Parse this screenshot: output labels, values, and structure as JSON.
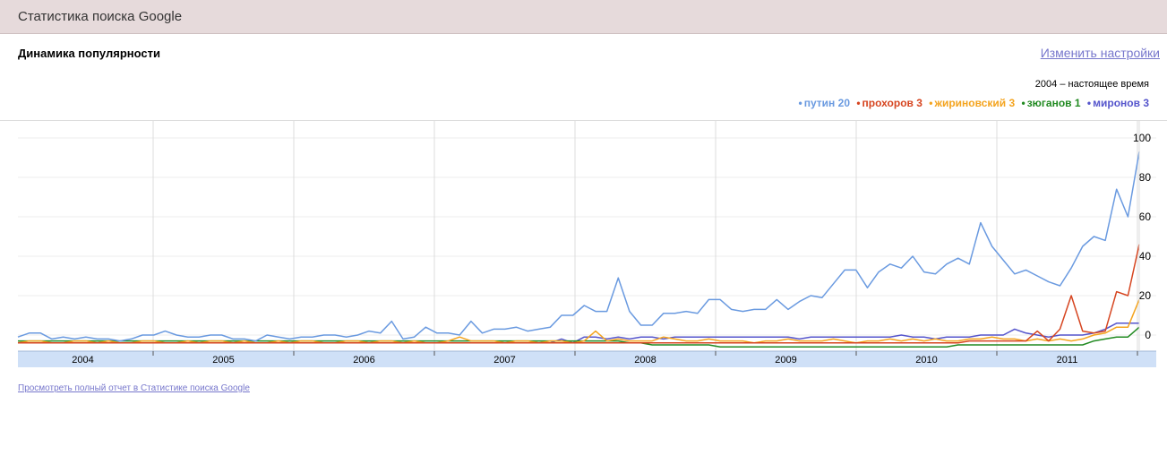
{
  "header": {
    "title": "Статистика поиска Google"
  },
  "section": {
    "title": "Динамика популярности"
  },
  "settings_link": "Изменить настройки",
  "period": "2004 – настоящее время",
  "report_link": "Просмотреть полный отчет в Статистике поиска Google",
  "legend": [
    {
      "label": "путин 20",
      "color": "#6a9ae0"
    },
    {
      "label": "прохоров 3",
      "color": "#d64520"
    },
    {
      "label": "жириновский 3",
      "color": "#f4a41f"
    },
    {
      "label": "зюганов 1",
      "color": "#218a21"
    },
    {
      "label": "миронов 3",
      "color": "#5555cc"
    }
  ],
  "chart_data": {
    "type": "line",
    "x_labels": [
      "2004",
      "2005",
      "2006",
      "2007",
      "2008",
      "2009",
      "2010",
      "2011"
    ],
    "y_ticks": [
      "100",
      "80",
      "60",
      "40",
      "20",
      "0"
    ],
    "ylim": [
      0,
      100
    ],
    "grid": true,
    "series": [
      {
        "name": "путин 20",
        "color": "#6a9ae0",
        "values": [
          -1,
          1,
          1,
          -2,
          -1,
          -2,
          -1,
          -2,
          -2,
          -3,
          -2,
          0,
          0,
          2,
          0,
          -1,
          -1,
          0,
          0,
          -2,
          -2,
          -3,
          0,
          -1,
          -2,
          -1,
          -1,
          0,
          0,
          -1,
          0,
          2,
          1,
          7,
          -2,
          -1,
          4,
          1,
          1,
          0,
          7,
          1,
          3,
          3,
          4,
          2,
          3,
          4,
          10,
          10,
          15,
          12,
          12,
          29,
          12,
          5,
          5,
          11,
          11,
          12,
          11,
          18,
          18,
          13,
          12,
          13,
          13,
          18,
          13,
          17,
          20,
          19,
          26,
          33,
          33,
          24,
          32,
          36,
          34,
          40,
          32,
          31,
          36,
          39,
          36,
          57,
          45,
          38,
          31,
          33,
          30,
          27,
          25,
          34,
          45,
          50,
          48,
          74,
          60,
          93
        ]
      },
      {
        "name": "прохоров 3",
        "color": "#d64520",
        "values": [
          -4,
          -4,
          -4,
          -4,
          -4,
          -4,
          -4,
          -4,
          -4,
          -4,
          -4,
          -4,
          -4,
          -4,
          -4,
          -4,
          -4,
          -4,
          -4,
          -4,
          -4,
          -4,
          -4,
          -4,
          -4,
          -4,
          -4,
          -4,
          -4,
          -4,
          -4,
          -4,
          -4,
          -4,
          -4,
          -4,
          -4,
          -4,
          -4,
          -4,
          -4,
          -4,
          -4,
          -4,
          -4,
          -4,
          -4,
          -4,
          -4,
          -4,
          -4,
          -4,
          -4,
          -4,
          -4,
          -4,
          -4,
          -4,
          -4,
          -4,
          -4,
          -4,
          -4,
          -4,
          -4,
          -4,
          -4,
          -4,
          -4,
          -4,
          -4,
          -4,
          -4,
          -4,
          -4,
          -4,
          -4,
          -4,
          -4,
          -4,
          -4,
          -4,
          -4,
          -4,
          -3,
          -3,
          -3,
          -3,
          -3,
          -3,
          2,
          -3,
          3,
          20,
          2,
          1,
          2,
          22,
          20,
          46
        ]
      },
      {
        "name": "жириновский 3",
        "color": "#f4a41f",
        "values": [
          -4,
          -3,
          -3,
          -4,
          -4,
          -3,
          -3,
          -4,
          -3,
          -4,
          -4,
          -3,
          -3,
          -4,
          -4,
          -3,
          -4,
          -3,
          -3,
          -4,
          -3,
          -4,
          -4,
          -3,
          -4,
          -3,
          -3,
          -4,
          -4,
          -3,
          -3,
          -4,
          -3,
          -3,
          -4,
          -3,
          -4,
          -4,
          -3,
          -1,
          -3,
          -3,
          -3,
          -4,
          -3,
          -3,
          -4,
          -3,
          -3,
          -4,
          -3,
          2,
          -3,
          -2,
          -3,
          -3,
          -3,
          -1,
          -2,
          -3,
          -3,
          -2,
          -3,
          -3,
          -3,
          -4,
          -3,
          -3,
          -2,
          -3,
          -3,
          -3,
          -2,
          -3,
          -4,
          -3,
          -3,
          -2,
          -3,
          -2,
          -3,
          -2,
          -3,
          -3,
          -2,
          -2,
          -1,
          -2,
          -2,
          -3,
          -2,
          -3,
          -2,
          -3,
          -2,
          0,
          1,
          4,
          4,
          18
        ]
      },
      {
        "name": "зюганов 1",
        "color": "#218a21",
        "values": [
          -3,
          -3,
          -3,
          -3,
          -3,
          -3,
          -3,
          -3,
          -3,
          -3,
          -3,
          -3,
          -3,
          -3,
          -3,
          -3,
          -3,
          -3,
          -3,
          -3,
          -3,
          -3,
          -3,
          -3,
          -3,
          -3,
          -3,
          -3,
          -3,
          -3,
          -3,
          -3,
          -3,
          -3,
          -3,
          -3,
          -3,
          -3,
          -3,
          -3,
          -3,
          -3,
          -3,
          -3,
          -3,
          -3,
          -3,
          -3,
          -3,
          -3,
          -3,
          -3,
          -3,
          -3,
          -4,
          -4,
          -5,
          -5,
          -5,
          -5,
          -5,
          -5,
          -6,
          -6,
          -6,
          -6,
          -6,
          -6,
          -6,
          -6,
          -6,
          -6,
          -6,
          -6,
          -6,
          -6,
          -6,
          -6,
          -6,
          -6,
          -6,
          -6,
          -6,
          -5,
          -5,
          -5,
          -5,
          -5,
          -5,
          -5,
          -5,
          -5,
          -5,
          -5,
          -5,
          -3,
          -2,
          -1,
          -1,
          4
        ]
      },
      {
        "name": "миронов 3",
        "color": "#5555cc",
        "values": [
          -4,
          -4,
          -4,
          -4,
          -4,
          -4,
          -4,
          -4,
          -4,
          -4,
          -4,
          -4,
          -4,
          -4,
          -4,
          -4,
          -4,
          -4,
          -4,
          -4,
          -4,
          -4,
          -4,
          -4,
          -4,
          -4,
          -4,
          -4,
          -4,
          -4,
          -4,
          -4,
          -4,
          -4,
          -4,
          -4,
          -4,
          -4,
          -4,
          -4,
          -4,
          -4,
          -4,
          -4,
          -4,
          -4,
          -4,
          -4,
          -2,
          -4,
          -1,
          -1,
          -2,
          -1,
          -2,
          -1,
          -1,
          -2,
          -1,
          -1,
          -1,
          -1,
          -1,
          -1,
          -1,
          -1,
          -1,
          -1,
          -1,
          -2,
          -1,
          -1,
          -1,
          -1,
          -1,
          -1,
          -1,
          -1,
          0,
          -1,
          -1,
          -2,
          -1,
          -1,
          -1,
          0,
          0,
          0,
          3,
          1,
          0,
          -1,
          0,
          0,
          0,
          1,
          3,
          6,
          6,
          6
        ]
      }
    ]
  }
}
